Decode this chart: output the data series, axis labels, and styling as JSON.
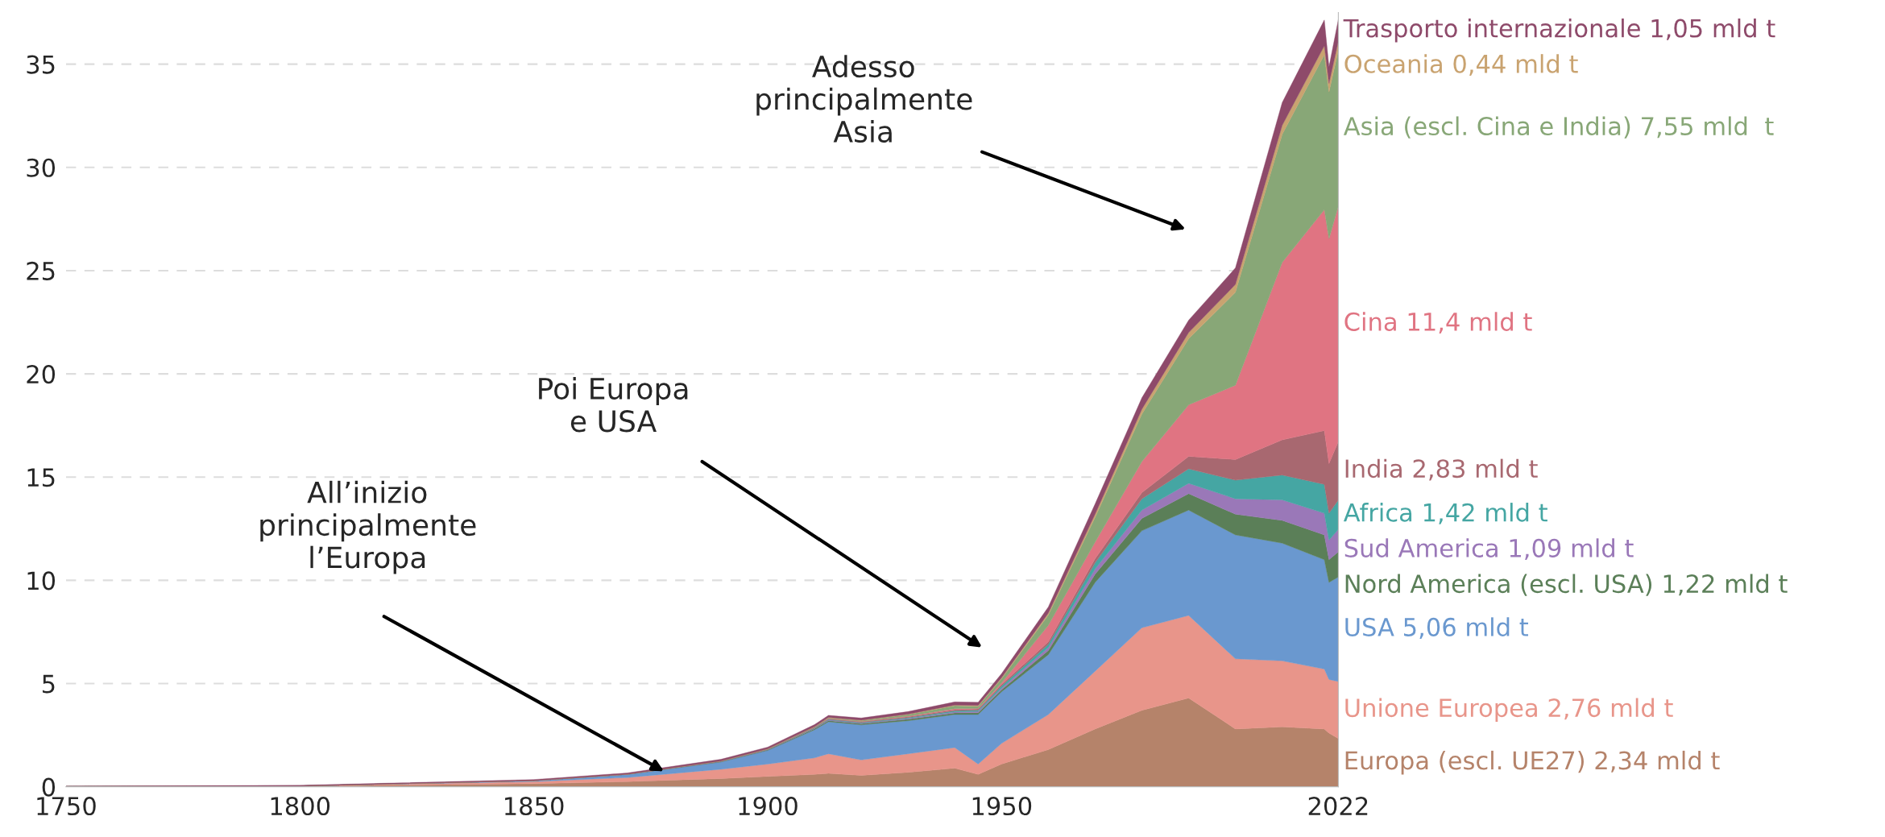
{
  "chart_data": {
    "type": "area",
    "stacked": true,
    "x": [
      1750,
      1800,
      1850,
      1870,
      1890,
      1900,
      1910,
      1913,
      1920,
      1930,
      1940,
      1945,
      1950,
      1960,
      1970,
      1980,
      1990,
      2000,
      2010,
      2019,
      2020,
      2022
    ],
    "xlim": [
      1750,
      2022
    ],
    "xticks": [
      1750,
      1800,
      1850,
      1900,
      1950,
      2022
    ],
    "ylim": [
      0,
      37.5
    ],
    "yticks": [
      0,
      5,
      10,
      15,
      20,
      25,
      30,
      35
    ],
    "grid": "y",
    "series": [
      {
        "name": "Europa (escl. UE27) 2,34 mld t",
        "color": "#b5836a",
        "values": [
          0.01,
          0.03,
          0.15,
          0.25,
          0.4,
          0.5,
          0.6,
          0.65,
          0.55,
          0.7,
          0.9,
          0.6,
          1.1,
          1.8,
          2.8,
          3.7,
          4.3,
          2.8,
          2.9,
          2.8,
          2.6,
          2.34
        ]
      },
      {
        "name": "Unione Europea 2,76 mld t",
        "color": "#e8958a",
        "values": [
          0,
          0.01,
          0.1,
          0.2,
          0.45,
          0.6,
          0.8,
          0.95,
          0.75,
          0.9,
          1.0,
          0.5,
          1.0,
          1.7,
          2.8,
          4.0,
          4.0,
          3.4,
          3.2,
          2.9,
          2.6,
          2.76
        ]
      },
      {
        "name": "USA 5,06 mld t",
        "color": "#6a98cf",
        "values": [
          0,
          0,
          0.05,
          0.15,
          0.35,
          0.66,
          1.36,
          1.55,
          1.7,
          1.6,
          1.6,
          2.4,
          2.5,
          2.9,
          4.3,
          4.7,
          5.1,
          6.0,
          5.7,
          5.3,
          4.7,
          5.06
        ]
      },
      {
        "name": "Nord America (escl. USA) 1,22 mld t",
        "color": "#5b7f58",
        "values": [
          0,
          0,
          0,
          0.01,
          0.02,
          0.03,
          0.05,
          0.06,
          0.06,
          0.07,
          0.08,
          0.09,
          0.1,
          0.2,
          0.4,
          0.6,
          0.8,
          1.0,
          1.1,
          1.2,
          1.1,
          1.22
        ]
      },
      {
        "name": "Sud America 1,09 mld t",
        "color": "#9a78b8",
        "values": [
          0,
          0,
          0,
          0,
          0.01,
          0.01,
          0.02,
          0.03,
          0.03,
          0.04,
          0.05,
          0.06,
          0.08,
          0.15,
          0.25,
          0.4,
          0.5,
          0.75,
          1.0,
          1.05,
          0.95,
          1.09
        ]
      },
      {
        "name": "Africa 1,42 mld t",
        "color": "#45a6a3",
        "values": [
          0,
          0,
          0,
          0,
          0.01,
          0.01,
          0.02,
          0.03,
          0.03,
          0.04,
          0.05,
          0.06,
          0.1,
          0.15,
          0.3,
          0.55,
          0.7,
          0.9,
          1.2,
          1.4,
          1.3,
          1.42
        ]
      },
      {
        "name": "India 2,83 mld t",
        "color": "#a86870",
        "values": [
          0,
          0,
          0,
          0,
          0.01,
          0.01,
          0.02,
          0.02,
          0.03,
          0.04,
          0.05,
          0.06,
          0.07,
          0.12,
          0.2,
          0.3,
          0.6,
          1.0,
          1.7,
          2.6,
          2.4,
          2.83
        ]
      },
      {
        "name": "Cina 11,4 mld t",
        "color": "#e07482",
        "values": [
          0,
          0,
          0,
          0,
          0,
          0,
          0.01,
          0.02,
          0.02,
          0.03,
          0.05,
          0.03,
          0.08,
          0.8,
          0.8,
          1.5,
          2.5,
          3.6,
          8.6,
          10.7,
          10.9,
          11.4
        ]
      },
      {
        "name": "Asia (escl. Cina e India) 7,55 mld  t",
        "color": "#88a777",
        "values": [
          0,
          0,
          0,
          0,
          0,
          0.01,
          0.02,
          0.03,
          0.04,
          0.08,
          0.15,
          0.1,
          0.2,
          0.5,
          1.2,
          2.3,
          3.2,
          4.5,
          6.2,
          7.5,
          7.1,
          7.55
        ]
      },
      {
        "name": "Oceania 0,44 mld t",
        "color": "#c9a370",
        "values": [
          0,
          0,
          0,
          0,
          0,
          0.01,
          0.01,
          0.02,
          0.02,
          0.02,
          0.03,
          0.04,
          0.05,
          0.09,
          0.15,
          0.24,
          0.3,
          0.38,
          0.44,
          0.44,
          0.42,
          0.44
        ]
      },
      {
        "name": "Trasporto internazionale 1,05 mld t",
        "color": "#8e4a6a",
        "values": [
          0.02,
          0.03,
          0.05,
          0.06,
          0.08,
          0.08,
          0.1,
          0.1,
          0.1,
          0.12,
          0.15,
          0.15,
          0.2,
          0.3,
          0.5,
          0.55,
          0.6,
          0.8,
          1.1,
          1.25,
          0.8,
          1.05
        ]
      }
    ],
    "annotations": [
      "All’inizio\nprincipalmente\nl’Europa",
      "Poi Europa\ne USA",
      "Adesso\nprincipalmente\nAsia"
    ]
  }
}
